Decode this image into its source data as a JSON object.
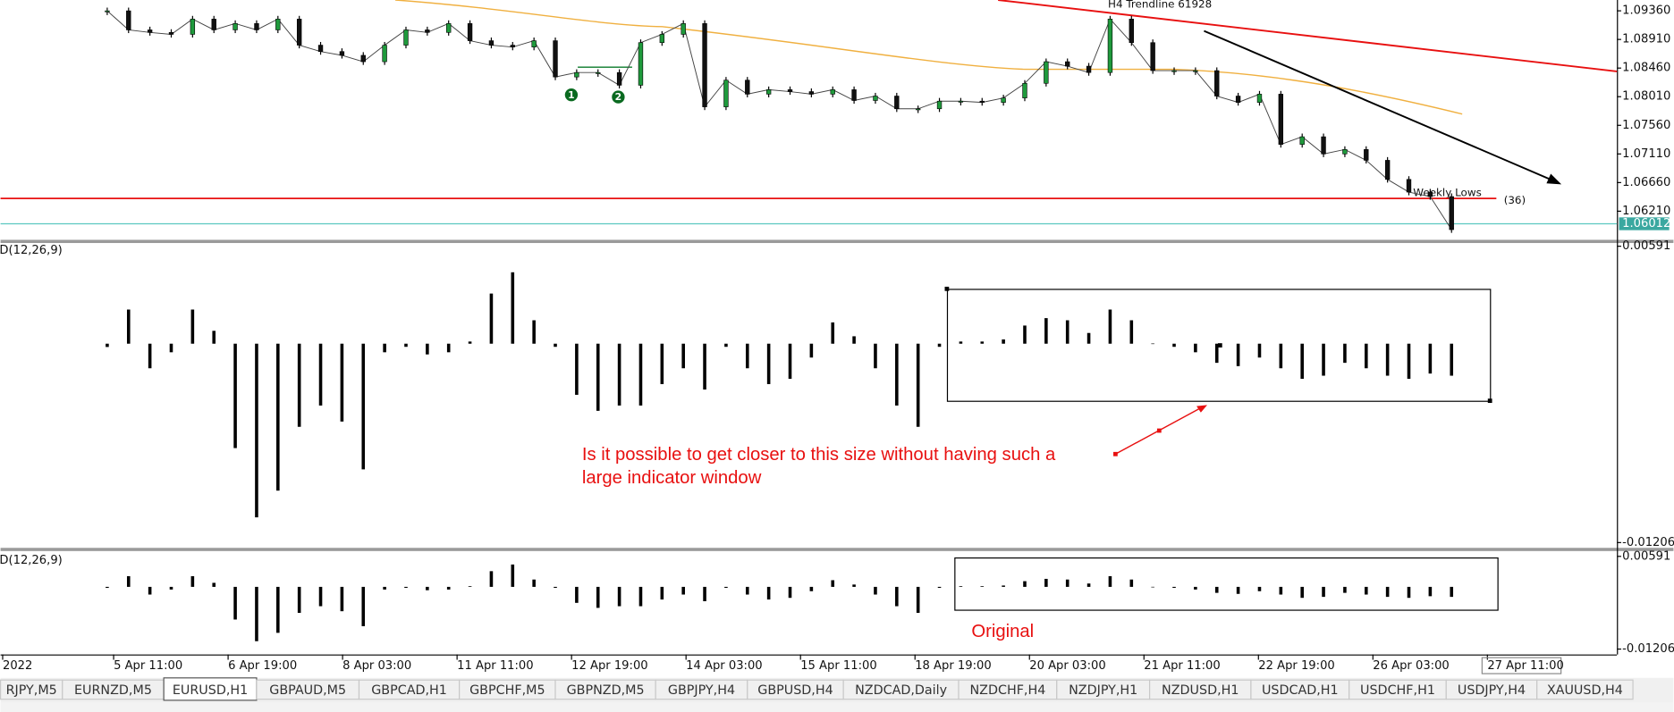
{
  "price_pane": {
    "annotations": {
      "trendline": "H4 Trendline 61928",
      "weekly_lows": "Weekly Lows",
      "count": "(36)",
      "marker_1": "1",
      "marker_2": "2"
    },
    "ylim": [
      1.0576,
      1.0953
    ],
    "ticks": [
      {
        "value": 1.0936,
        "label": "1.09360"
      },
      {
        "value": 1.0891,
        "label": "1.08910"
      },
      {
        "value": 1.0846,
        "label": "1.08460"
      },
      {
        "value": 1.0801,
        "label": "1.08010"
      },
      {
        "value": 1.0756,
        "label": "1.07560"
      },
      {
        "value": 1.0711,
        "label": "1.07110"
      },
      {
        "value": 1.0666,
        "label": "1.06660"
      },
      {
        "value": 1.0621,
        "label": "1.06210"
      }
    ],
    "current_price": 1.06012,
    "weekly_low": 1.0641,
    "closes": [
      1.0936,
      1.0906,
      1.0902,
      1.0899,
      1.0923,
      1.0906,
      1.0916,
      1.0906,
      1.0923,
      1.0882,
      1.0872,
      1.0866,
      1.0856,
      1.0882,
      1.0906,
      1.0902,
      1.0916,
      1.0889,
      1.0882,
      1.0879,
      1.0889,
      1.0832,
      1.0839,
      1.0839,
      1.0819,
      1.0886,
      1.0899,
      1.0916,
      1.0785,
      1.0827,
      1.0805,
      1.0812,
      1.0809,
      1.0805,
      1.0812,
      1.0795,
      1.0802,
      1.0782,
      1.0782,
      1.0794,
      1.0794,
      1.0792,
      1.0799,
      1.0822,
      1.0856,
      1.0849,
      1.0839,
      1.0923,
      1.0886,
      1.0842,
      1.0842,
      1.0842,
      1.0802,
      1.0792,
      1.0805,
      1.0726,
      1.0738,
      1.0711,
      1.0718,
      1.0701,
      1.0671,
      1.0651,
      1.0644,
      1.0592
    ]
  },
  "macd_large": {
    "label": "D(12,26,9)",
    "ylim": [
      -0.01238,
      0.00604
    ],
    "ticks": [
      0.00591,
      -0.01206
    ],
    "question": [
      "Is it possible to get closer to this size without having such a",
      "large indicator window"
    ]
  },
  "macd_small": {
    "label": "D(12,26,9)",
    "ylim": [
      -0.0131,
      0.00694
    ],
    "ticks": [
      0.00591,
      -0.01206
    ],
    "note": "Original"
  },
  "macd_values": [
    -0.0002,
    0.00207,
    -0.00149,
    -0.00052,
    0.00207,
    0.00078,
    -0.00633,
    -0.01053,
    -0.00891,
    -0.00504,
    -0.00375,
    -0.00472,
    -0.00762,
    -0.00052,
    -0.00019,
    -0.00065,
    -0.00052,
    0.00013,
    0.00304,
    0.00433,
    0.00142,
    -0.00019,
    -0.0031,
    -0.00407,
    -0.00375,
    -0.00375,
    -0.00245,
    -0.00149,
    -0.00278,
    -0.00019,
    -0.00149,
    -0.00245,
    -0.00213,
    -0.00084,
    0.00129,
    0.00045,
    -0.00149,
    -0.00375,
    -0.00504,
    -0.00019,
    0.00013,
    0.00013,
    0.00026,
    0.0011,
    0.00155,
    0.00142,
    0.00065,
    0.00207,
    0.00142,
    1e-05,
    -0.00019,
    -0.00052,
    -0.00116,
    -0.00136,
    -0.00084,
    -0.00149,
    -0.00213,
    -0.00194,
    -0.00116,
    -0.00149,
    -0.00194,
    -0.00213,
    -0.00181,
    -0.00194
  ],
  "time_axis": [
    "2022",
    "5 Apr 11:00",
    "6 Apr 19:00",
    "8 Apr 03:00",
    "11 Apr 11:00",
    "12 Apr 19:00",
    "14 Apr 03:00",
    "15 Apr 11:00",
    "18 Apr 19:00",
    "20 Apr 03:00",
    "21 Apr 11:00",
    "22 Apr 19:00",
    "26 Apr 03:00",
    "27 Apr 11:00"
  ],
  "tabs": [
    "RJPY,M5",
    "EURNZD,M5",
    "EURUSD,H1",
    "GBPAUD,M5",
    "GBPCAD,H1",
    "GBPCHF,M5",
    "GBPNZD,M5",
    "GBPJPY,H4",
    "GBPUSD,H4",
    "NZDCAD,Daily",
    "NZDCHF,H4",
    "NZDJPY,H1",
    "NZDUSD,H1",
    "USDCAD,H1",
    "USDCHF,H1",
    "USDJPY,H4",
    "XAUUSD,H4"
  ]
}
